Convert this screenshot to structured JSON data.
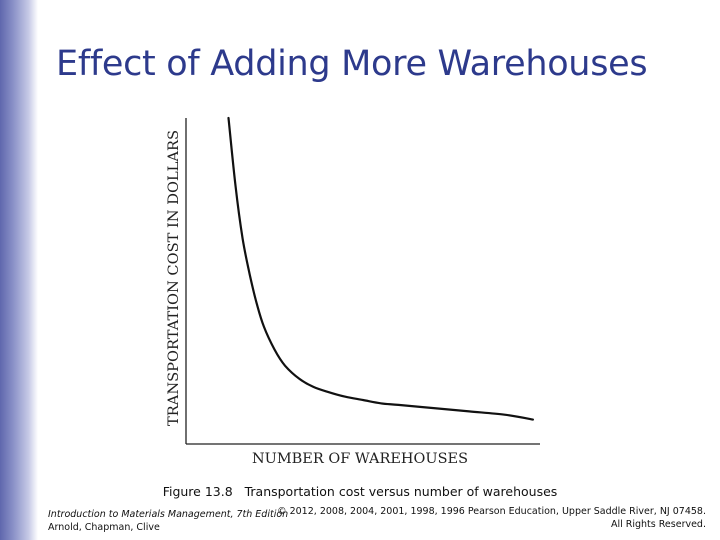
{
  "slide": {
    "title": "Effect of Adding More Warehouses"
  },
  "caption": {
    "figure": "Figure 13.8",
    "text": "Transportation cost versus number of warehouses"
  },
  "footer": {
    "book_title": "Introduction to Materials Management, 7th Edition",
    "authors": "Arnold, Chapman, Clive",
    "copyright": "© 2012, 2008, 2004, 2001, 1998, 1996 Pearson Education, Upper Saddle River, NJ 07458.",
    "rights": "All Rights Reserved."
  },
  "colors": {
    "title": "#2d3a8c",
    "curve": "#111111",
    "side_bar": "#5f67ad"
  },
  "chart_data": {
    "type": "line",
    "title": "",
    "xlabel": "NUMBER OF WAREHOUSES",
    "ylabel": "TRANSPORTATION COST IN DOLLARS",
    "grid": false,
    "xlim": [
      0,
      1
    ],
    "ylim": [
      0,
      1
    ],
    "series": [
      {
        "name": "",
        "x": [
          0.12,
          0.14,
          0.16,
          0.18,
          0.2,
          0.22,
          0.25,
          0.28,
          0.32,
          0.36,
          0.4,
          0.45,
          0.5,
          0.55,
          0.6,
          0.7,
          0.8,
          0.9,
          0.98
        ],
        "y": [
          1.0,
          0.79,
          0.63,
          0.52,
          0.43,
          0.36,
          0.29,
          0.24,
          0.2,
          0.175,
          0.16,
          0.145,
          0.135,
          0.125,
          0.12,
          0.11,
          0.1,
          0.09,
          0.075
        ]
      }
    ]
  }
}
